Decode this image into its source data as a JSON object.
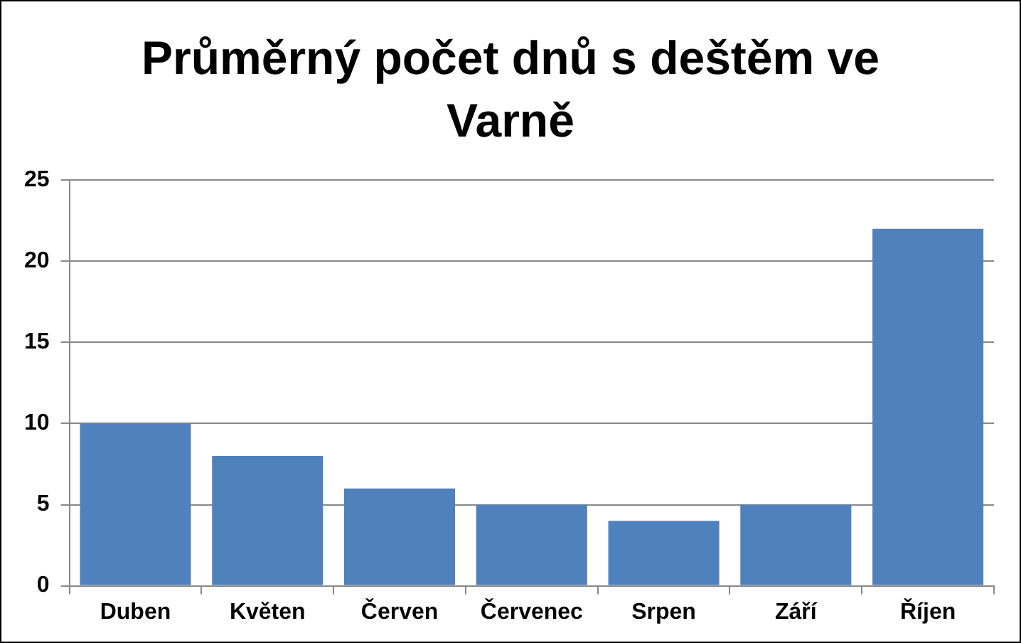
{
  "chart_data": {
    "type": "bar",
    "title": "Průměrný počet dnů s deštěm ve Varně",
    "categories": [
      "Duben",
      "Květen",
      "Červen",
      "Červenec",
      "Srpen",
      "Září",
      "Říjen"
    ],
    "values": [
      10,
      8,
      6,
      5,
      4,
      5,
      22
    ],
    "color": "#4f81bd",
    "ylim": [
      0,
      25
    ],
    "yticks": [
      0,
      5,
      10,
      15,
      20,
      25
    ],
    "grid": "y",
    "legend": false
  }
}
